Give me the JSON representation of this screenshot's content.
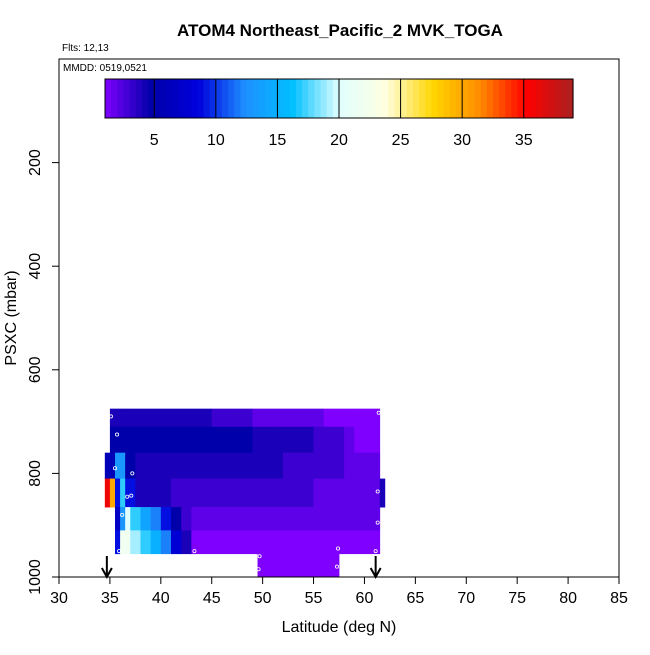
{
  "chart_data": {
    "type": "heatmap",
    "title": "ATOM4 Northeast_Pacific_2 MVK_TOGA",
    "flights_text": "Flts: 12,13",
    "mmdd_text": "MMDD: 0519,0521",
    "xlabel": "Latitude (deg N)",
    "ylabel": "PSXC (mbar)",
    "xlim": [
      30,
      85
    ],
    "ylim": [
      1000,
      0
    ],
    "x_ticks": [
      30,
      35,
      40,
      45,
      50,
      55,
      60,
      65,
      70,
      75,
      80,
      85
    ],
    "y_ticks": [
      200,
      400,
      600,
      800,
      1000
    ],
    "colorbar": {
      "range": [
        1,
        39
      ],
      "ticks": [
        5,
        10,
        15,
        20,
        25,
        30,
        35
      ],
      "colors": [
        "#7f00ff",
        "#0000a8",
        "#0000dd",
        "#1e90ff",
        "#00bfff",
        "#e0ffff",
        "#ffffe0",
        "#ffd700",
        "#ff8c00",
        "#ff0000",
        "#aa2020"
      ]
    },
    "flight_marker_lats": [
      34.7,
      61.1
    ],
    "rows": [
      {
        "p_top": 675,
        "p_bot": 710,
        "cells": [
          [
            35,
            36,
            4
          ],
          [
            36,
            45,
            4
          ],
          [
            45,
            47,
            3
          ],
          [
            47,
            49,
            3
          ],
          [
            49,
            51,
            2
          ],
          [
            51,
            53,
            2
          ],
          [
            53,
            56,
            2
          ],
          [
            56,
            59,
            1
          ],
          [
            59,
            61.5,
            1
          ]
        ]
      },
      {
        "p_top": 710,
        "p_bot": 760,
        "cells": [
          [
            35,
            36,
            5
          ],
          [
            36,
            49,
            5
          ],
          [
            49,
            51,
            4
          ],
          [
            51,
            55,
            4
          ],
          [
            55,
            56,
            3
          ],
          [
            56,
            58,
            3
          ],
          [
            58,
            59,
            2
          ],
          [
            59,
            61.5,
            1
          ]
        ]
      },
      {
        "p_top": 760,
        "p_bot": 810,
        "cells": [
          [
            34.5,
            35.5,
            6
          ],
          [
            35.5,
            36.5,
            13
          ],
          [
            36.5,
            37.5,
            5
          ],
          [
            37.5,
            48,
            4
          ],
          [
            48,
            52,
            4
          ],
          [
            52,
            55,
            3
          ],
          [
            55,
            58,
            3
          ],
          [
            58,
            61.5,
            2
          ]
        ]
      },
      {
        "p_top": 810,
        "p_bot": 865,
        "cells": [
          [
            34.5,
            35,
            36
          ],
          [
            35,
            35.5,
            30
          ],
          [
            35.5,
            36,
            9
          ],
          [
            36,
            36.5,
            17
          ],
          [
            36.5,
            37.5,
            9
          ],
          [
            37.5,
            41,
            4
          ],
          [
            41,
            50,
            3
          ],
          [
            50,
            55,
            3
          ],
          [
            55,
            61.5,
            2
          ],
          [
            61.5,
            62,
            4
          ]
        ]
      },
      {
        "p_top": 865,
        "p_bot": 910,
        "cells": [
          [
            35.5,
            36,
            7
          ],
          [
            36,
            36.5,
            13
          ],
          [
            36.5,
            37,
            20
          ],
          [
            37,
            38,
            17
          ],
          [
            38,
            39,
            14
          ],
          [
            39,
            40,
            12
          ],
          [
            40,
            41,
            9
          ],
          [
            41,
            42,
            5
          ],
          [
            42,
            43,
            3
          ],
          [
            43,
            55,
            2
          ],
          [
            55,
            61.5,
            2
          ]
        ]
      },
      {
        "p_top": 910,
        "p_bot": 955,
        "cells": [
          [
            35.5,
            36,
            9
          ],
          [
            36,
            37,
            22
          ],
          [
            37,
            38,
            19
          ],
          [
            38,
            39,
            17
          ],
          [
            39,
            40,
            15
          ],
          [
            40,
            41,
            12
          ],
          [
            41,
            42,
            8
          ],
          [
            42,
            43,
            4
          ],
          [
            43,
            61.5,
            1
          ]
        ]
      },
      {
        "p_top": 955,
        "p_bot": 1000,
        "cells": [
          [
            49.5,
            52,
            1
          ],
          [
            52,
            57.5,
            1
          ]
        ]
      }
    ],
    "sample_points": [
      [
        35.1,
        690
      ],
      [
        61.4,
        683
      ],
      [
        35.7,
        725
      ],
      [
        35.5,
        790
      ],
      [
        37.2,
        800
      ],
      [
        36.7,
        845
      ],
      [
        37.1,
        843
      ],
      [
        61.3,
        835
      ],
      [
        36.2,
        880
      ],
      [
        61.3,
        895
      ],
      [
        35.9,
        950
      ],
      [
        43.3,
        950
      ],
      [
        49.7,
        960
      ],
      [
        57.4,
        945
      ],
      [
        61.1,
        950
      ],
      [
        49.6,
        985
      ],
      [
        57.3,
        980
      ]
    ]
  }
}
